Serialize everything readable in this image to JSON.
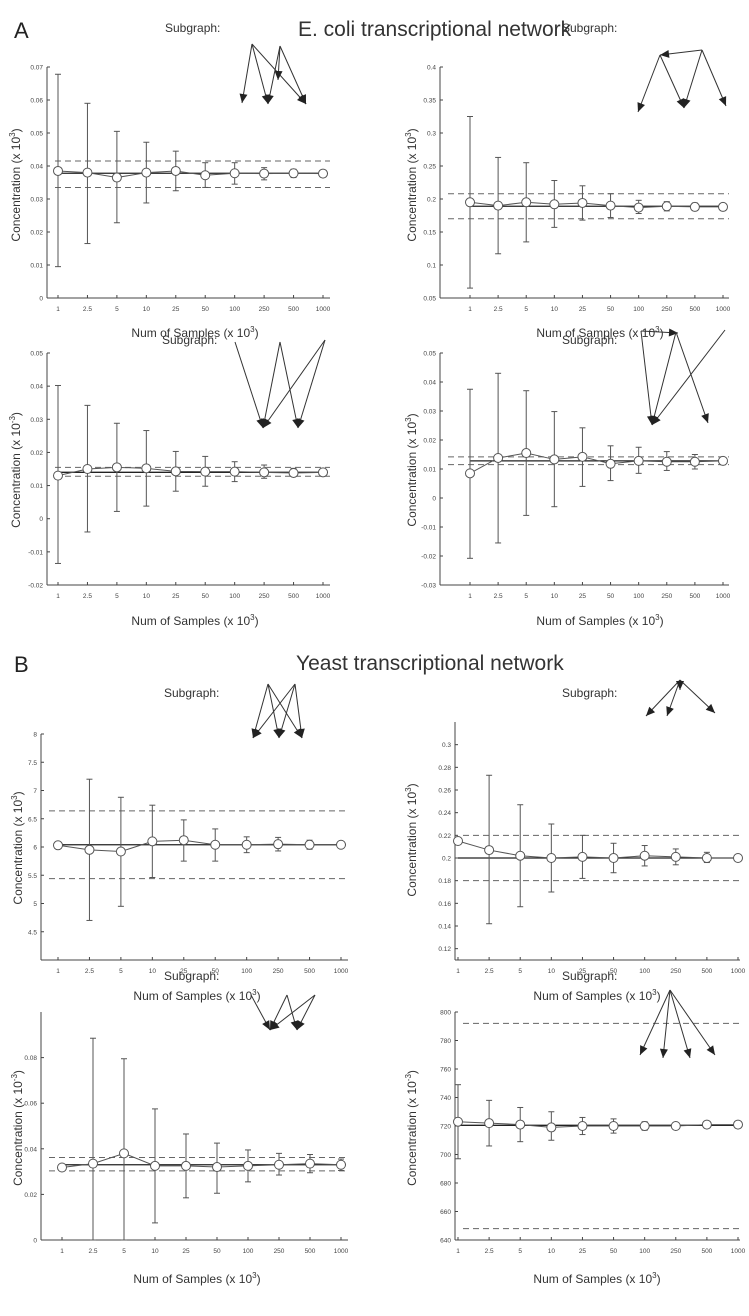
{
  "figure": {
    "section_a": {
      "letter": "A",
      "title": "E. coli transcriptional network"
    },
    "section_b": {
      "letter": "B",
      "title": "Yeast transcriptional network"
    },
    "subgraph_label": "Subgraph:",
    "xlabel_text": "Num of Samples (x 10",
    "xlabel_exp": "3",
    "xlabel_close": ")",
    "ylabel_text": "Concentration (x 10",
    "ylabel_exp": "-3",
    "ylabel_exp_a_top": "3",
    "ylabel_close": ")"
  },
  "colors": {
    "line": "#555555",
    "dashed": "#666666",
    "dashed_light": "#aaaaaa",
    "axis": "#444444"
  },
  "chart_data": [
    {
      "id": "a-top-left",
      "type": "line",
      "categories": [
        "1",
        "2.5",
        "5",
        "10",
        "25",
        "50",
        "100",
        "250",
        "500",
        "1000"
      ],
      "ylim": [
        0,
        0.07
      ],
      "yticks": [
        "0",
        "0.01",
        "0.02",
        "0.03",
        "0.04",
        "0.05",
        "0.06",
        "0.07"
      ],
      "ylabel_exp": "3",
      "values": [
        0.0385,
        0.038,
        0.0365,
        0.038,
        0.0385,
        0.0372,
        0.0378,
        0.0377,
        0.0378,
        0.0377
      ],
      "err_low": [
        0.0095,
        0.0165,
        0.0228,
        0.0288,
        0.0325,
        0.0335,
        0.0345,
        0.0358,
        0.0365,
        0.0368
      ],
      "err_high": [
        0.0678,
        0.059,
        0.0505,
        0.0472,
        0.0445,
        0.041,
        0.041,
        0.0395,
        0.039,
        0.0386
      ],
      "dashed": [
        0.0335,
        0.0415
      ],
      "solid": 0.0378
    },
    {
      "id": "a-top-right",
      "type": "line",
      "categories": [
        "1",
        "2.5",
        "5",
        "10",
        "25",
        "50",
        "100",
        "250",
        "500",
        "1000"
      ],
      "ylim": [
        0.05,
        0.4
      ],
      "yticks": [
        "0.05",
        "0.1",
        "0.15",
        "0.2",
        "0.25",
        "0.3",
        "0.35",
        "0.4"
      ],
      "ylabel_exp": "3",
      "values": [
        0.195,
        0.19,
        0.195,
        0.192,
        0.194,
        0.19,
        0.187,
        0.189,
        0.188,
        0.188
      ],
      "err_low": [
        0.065,
        0.117,
        0.135,
        0.157,
        0.168,
        0.172,
        0.178,
        0.182,
        0.183,
        0.185
      ],
      "err_high": [
        0.325,
        0.263,
        0.255,
        0.228,
        0.22,
        0.208,
        0.198,
        0.196,
        0.194,
        0.192
      ],
      "dashed": [
        0.17,
        0.208
      ],
      "solid": 0.189
    },
    {
      "id": "a-bottom-left",
      "type": "line",
      "categories": [
        "1",
        "2.5",
        "5",
        "10",
        "25",
        "50",
        "100",
        "250",
        "500",
        "1000"
      ],
      "ylim": [
        -0.02,
        0.05
      ],
      "yticks": [
        "-0.02",
        "-0.01",
        "0",
        "0.01",
        "0.02",
        "0.03",
        "0.04",
        "0.05"
      ],
      "ylabel_exp": "-3",
      "values": [
        0.013,
        0.015,
        0.0155,
        0.0152,
        0.0143,
        0.0142,
        0.0142,
        0.014,
        0.0138,
        0.014
      ],
      "err_low": [
        -0.0135,
        -0.004,
        0.0022,
        0.0038,
        0.0083,
        0.0098,
        0.0112,
        0.0122,
        0.0128,
        0.0132
      ],
      "err_high": [
        0.0402,
        0.0342,
        0.0288,
        0.0266,
        0.0203,
        0.0188,
        0.0172,
        0.0162,
        0.0152,
        0.0148
      ],
      "dashed": [
        0.0128,
        0.0155
      ],
      "solid": 0.014
    },
    {
      "id": "a-bottom-right",
      "type": "line",
      "categories": [
        "1",
        "2.5",
        "5",
        "10",
        "25",
        "50",
        "100",
        "250",
        "500",
        "1000"
      ],
      "ylim": [
        -0.03,
        0.05
      ],
      "yticks": [
        "-0.03",
        "-0.02",
        "-0.01",
        "0",
        "0.01",
        "0.02",
        "0.03",
        "0.04",
        "0.05"
      ],
      "ylabel_exp": "3",
      "values": [
        0.0085,
        0.0138,
        0.0155,
        0.0133,
        0.0142,
        0.0118,
        0.0128,
        0.0125,
        0.0125,
        0.0128
      ],
      "err_low": [
        -0.0208,
        -0.0155,
        -0.006,
        -0.003,
        0.004,
        0.006,
        0.0085,
        0.0095,
        0.01,
        0.0115
      ],
      "err_high": [
        0.0375,
        0.043,
        0.037,
        0.0298,
        0.0242,
        0.018,
        0.0175,
        0.016,
        0.015,
        0.0138
      ],
      "dashed": [
        0.0115,
        0.0142
      ],
      "solid": 0.0128
    },
    {
      "id": "b-top-left",
      "type": "line",
      "categories": [
        "1",
        "2.5",
        "5",
        "10",
        "25",
        "50",
        "100",
        "250",
        "500",
        "1000"
      ],
      "ylim": [
        4,
        8
      ],
      "yticks": [
        "4.5",
        "5",
        "5.5",
        "6",
        "6.5",
        "7",
        "7.5",
        "8"
      ],
      "ylabel_exp": "3",
      "values": [
        6.03,
        5.95,
        5.92,
        6.1,
        6.12,
        6.04,
        6.04,
        6.05,
        6.04,
        6.04
      ],
      "err_low": [
        6.03,
        4.7,
        4.95,
        5.46,
        5.75,
        5.75,
        5.9,
        5.93,
        5.96,
        5.99
      ],
      "err_high": [
        6.03,
        7.2,
        6.88,
        6.74,
        6.48,
        6.32,
        6.18,
        6.17,
        6.12,
        6.09
      ],
      "dashed": [
        5.44,
        6.64
      ],
      "solid": 6.04
    },
    {
      "id": "b-top-right",
      "type": "line",
      "categories": [
        "1",
        "2.5",
        "5",
        "10",
        "25",
        "50",
        "100",
        "250",
        "500",
        "1000"
      ],
      "ylim": [
        0.11,
        0.32
      ],
      "yticks": [
        "0.12",
        "0.14",
        "0.16",
        "0.18",
        "0.2",
        "0.22",
        "0.24",
        "0.26",
        "0.28",
        "0.3"
      ],
      "ylabel_exp": "3",
      "values": [
        0.215,
        0.207,
        0.202,
        0.2,
        0.201,
        0.2,
        0.202,
        0.201,
        0.2,
        0.2
      ],
      "err_low": [
        0.215,
        0.142,
        0.157,
        0.17,
        0.182,
        0.187,
        0.193,
        0.194,
        0.196,
        0.197
      ],
      "err_high": [
        0.215,
        0.273,
        0.247,
        0.23,
        0.22,
        0.213,
        0.211,
        0.208,
        0.205,
        0.203
      ],
      "dashed": [
        0.18,
        0.22
      ],
      "solid": 0.2
    },
    {
      "id": "b-bottom-left",
      "type": "line",
      "categories": [
        "1",
        "2.5",
        "5",
        "10",
        "25",
        "50",
        "100",
        "250",
        "500",
        "1000"
      ],
      "ylim": [
        0,
        0.1
      ],
      "yticks": [
        "0",
        "0.02",
        "0.04",
        "0.06",
        "0.08"
      ],
      "ylabel_exp": "-3",
      "values": [
        0.0318,
        0.0335,
        0.038,
        0.0325,
        0.0325,
        0.032,
        0.0325,
        0.033,
        0.0335,
        0.033
      ],
      "err_low": [
        0.0318,
        0.0,
        0.0,
        0.0075,
        0.0185,
        0.0205,
        0.0255,
        0.0285,
        0.0295,
        0.0305
      ],
      "err_high": [
        0.0318,
        0.0885,
        0.0795,
        0.0575,
        0.0465,
        0.0425,
        0.0395,
        0.038,
        0.0375,
        0.0355
      ],
      "dashed": [
        0.0303,
        0.0362
      ],
      "solid": 0.033
    },
    {
      "id": "b-bottom-right",
      "type": "line",
      "categories": [
        "1",
        "2.5",
        "5",
        "10",
        "25",
        "50",
        "100",
        "250",
        "500",
        "1000"
      ],
      "ylim": [
        640,
        800
      ],
      "yticks": [
        "640",
        "660",
        "680",
        "700",
        "720",
        "740",
        "760",
        "780",
        "800"
      ],
      "ylabel_exp": "-3",
      "values": [
        723,
        722,
        721,
        719,
        720,
        720,
        720,
        720,
        721,
        721
      ],
      "err_low": [
        697,
        706,
        709,
        710,
        714,
        715,
        717,
        718,
        719,
        720
      ],
      "err_high": [
        749,
        738,
        733,
        730,
        726,
        725,
        723,
        722,
        722,
        722
      ],
      "dashed": [
        648,
        792
      ],
      "solid": 720.5
    }
  ]
}
